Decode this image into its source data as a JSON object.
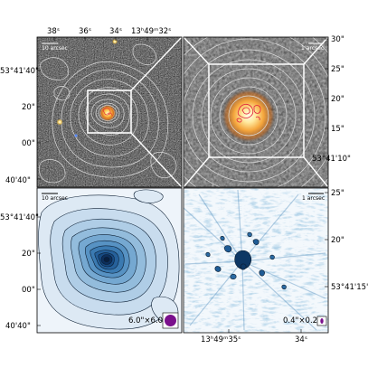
{
  "panels": {
    "top_left": {
      "scalebar_label": "10 arcsec"
    },
    "top_right": {
      "scalebar_label": "1 arcsec"
    },
    "bottom_left": {
      "scalebar_label": "10 arcsec",
      "beam_label": "6.0\"×6.0\"",
      "beam_color": "#7a0f8c"
    },
    "bottom_right": {
      "scalebar_label": "1 arcsec",
      "beam_label": "0.4\"×0.2\"",
      "beam_color": "#7a0f8c"
    }
  },
  "axes": {
    "top_ra_ticks": [
      "38ˢ",
      "36ˢ",
      "34ˢ",
      "13ʰ49ᵐ32ˢ"
    ],
    "left_dec_ticks_top": [
      "53°41'40\"",
      "20\"",
      "00\"",
      "40'40\""
    ],
    "right_dec_ticks_top": [
      "30\"",
      "25\"",
      "20\"",
      "15\"",
      "53°41'10\""
    ],
    "left_dec_ticks_bottom": [
      "53°41'40\"",
      "20\"",
      "00\"",
      "40'40\""
    ],
    "right_dec_ticks_bottom": [
      "25\"",
      "20\"",
      "53°41'15\""
    ],
    "bottom_ra_ticks": [
      "13ʰ49ᵐ35ˢ",
      "34ˢ"
    ]
  }
}
